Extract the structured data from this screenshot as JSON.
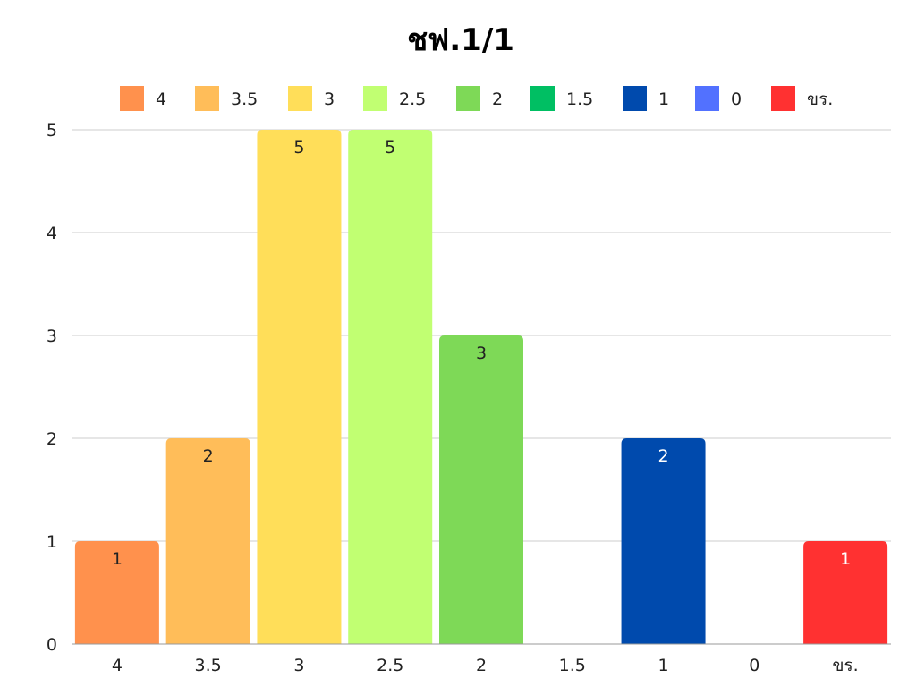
{
  "chart_data": {
    "type": "bar",
    "title": "ชฟ.1/1",
    "xlabel": "",
    "ylabel": "",
    "categories": [
      "4",
      "3.5",
      "3",
      "2.5",
      "2",
      "1.5",
      "1",
      "0",
      "ขร."
    ],
    "values": [
      1,
      2,
      5,
      5,
      3,
      0,
      2,
      0,
      1
    ],
    "colors": [
      "#FF914D",
      "#FFBD59",
      "#FFDE59",
      "#C1FF72",
      "#7ED957",
      "#00BF63",
      "#004AAD",
      "#5271FF",
      "#FF3131"
    ],
    "data_label_colors": [
      "#222222",
      "#222222",
      "#222222",
      "#222222",
      "#222222",
      "#222222",
      "#ffffff",
      "#ffffff",
      "#ffffff"
    ],
    "ylim": [
      0,
      5
    ],
    "yticks": [
      0,
      1,
      2,
      3,
      4,
      5
    ],
    "grid": true,
    "legend": {
      "position": "top",
      "entries": [
        "4",
        "3.5",
        "3",
        "2.5",
        "2",
        "1.5",
        "1",
        "0",
        "ขร."
      ]
    }
  }
}
